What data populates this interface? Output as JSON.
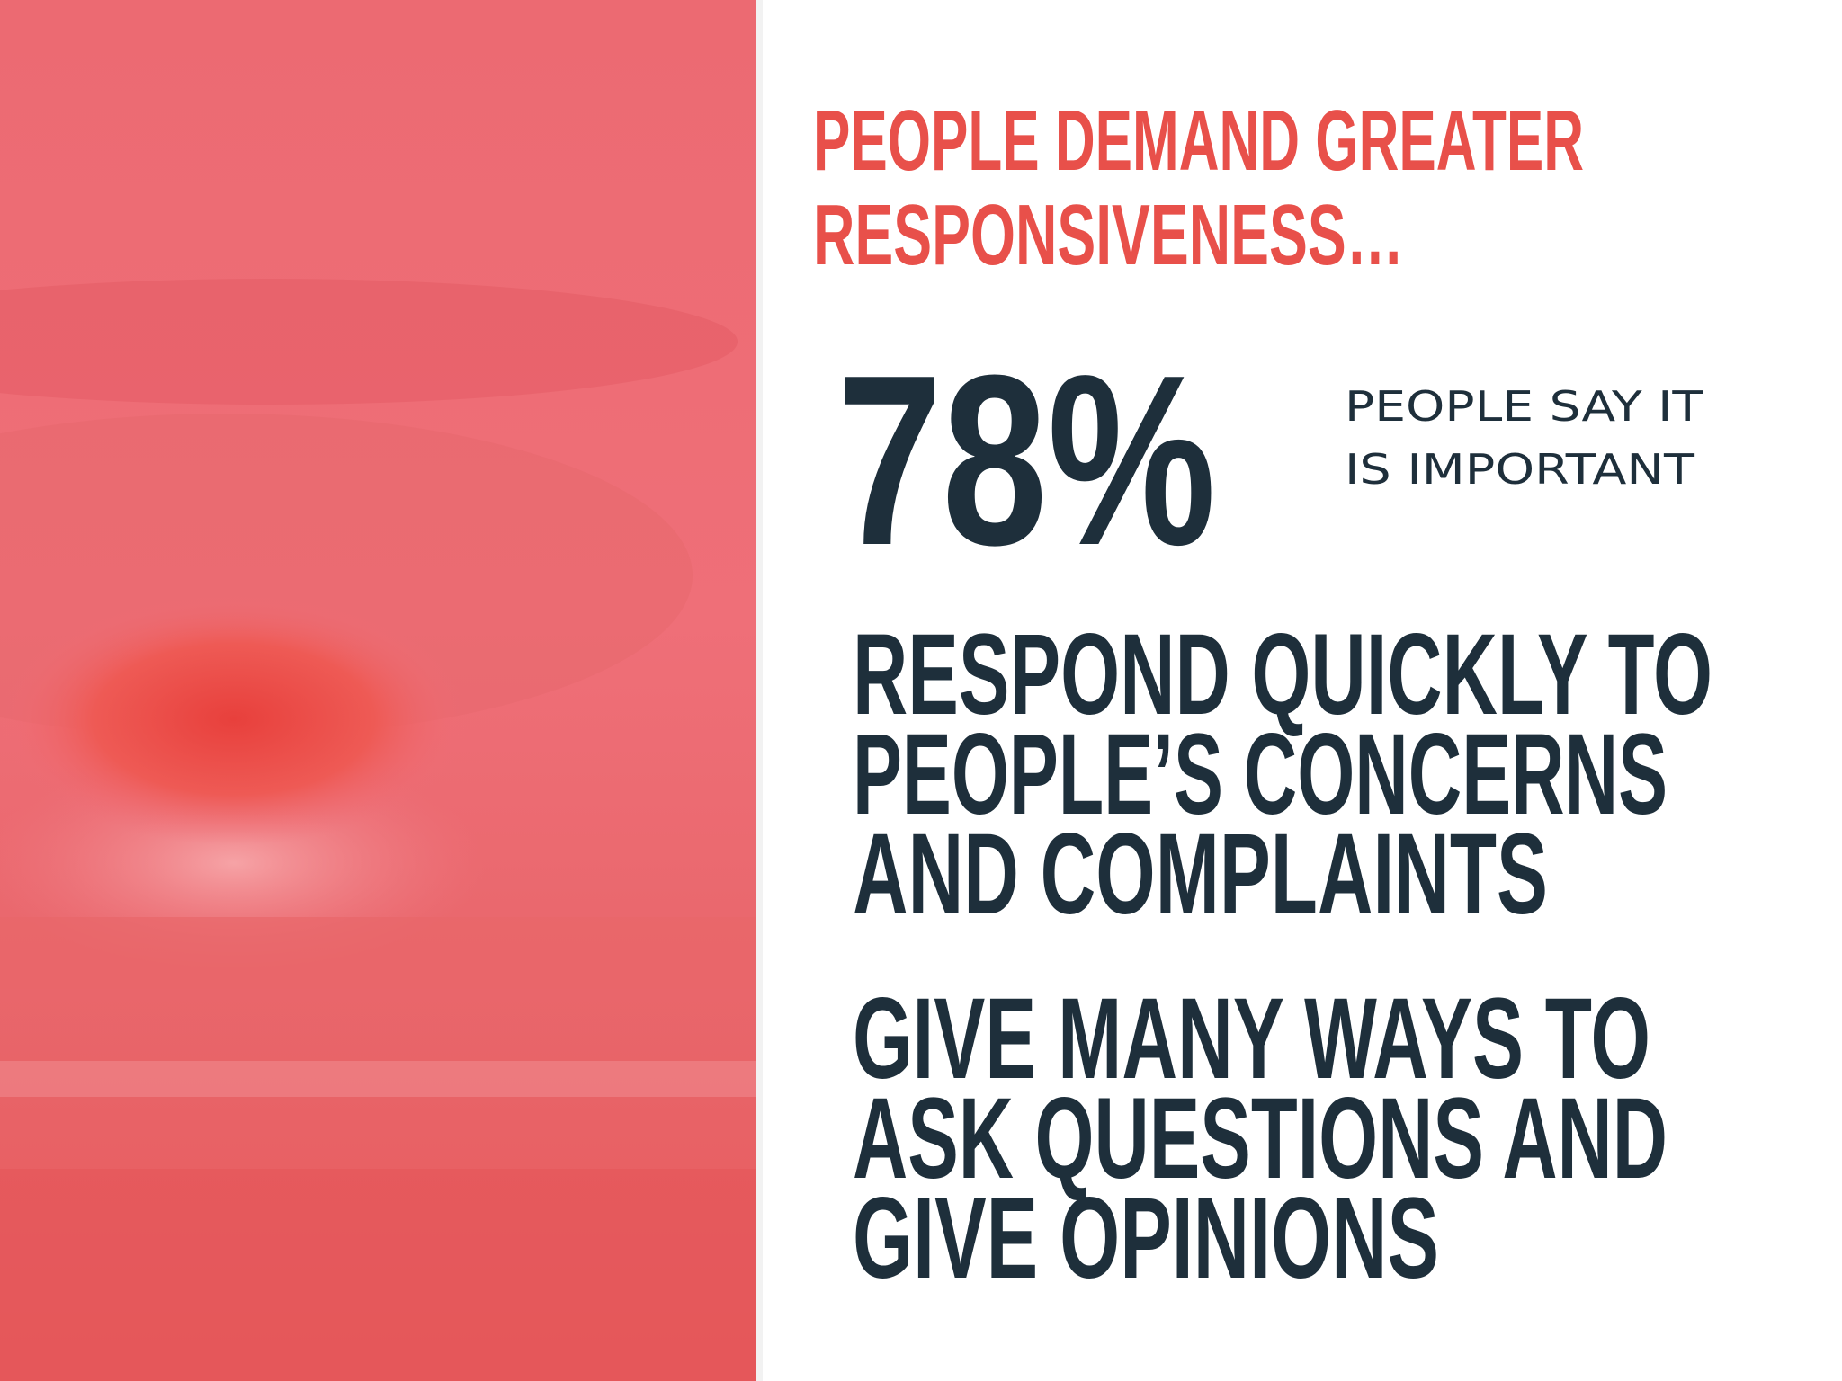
{
  "slide": {
    "title_lines": [
      "PEOPLE DEMAND GREATER",
      "RESPONSIVENESS…"
    ],
    "stat": "78%",
    "stat_caption_lines": [
      "PEOPLE SAY IT",
      "IS IMPORTANT"
    ],
    "points": [
      {
        "lines": [
          "RESPOND QUICKLY TO",
          "PEOPLE’S CONCERNS",
          "AND COMPLAINTS"
        ]
      },
      {
        "lines": [
          "GIVE MANY WAYS TO",
          "ASK QUESTIONS AND",
          "GIVE OPINIONS"
        ]
      }
    ]
  }
}
